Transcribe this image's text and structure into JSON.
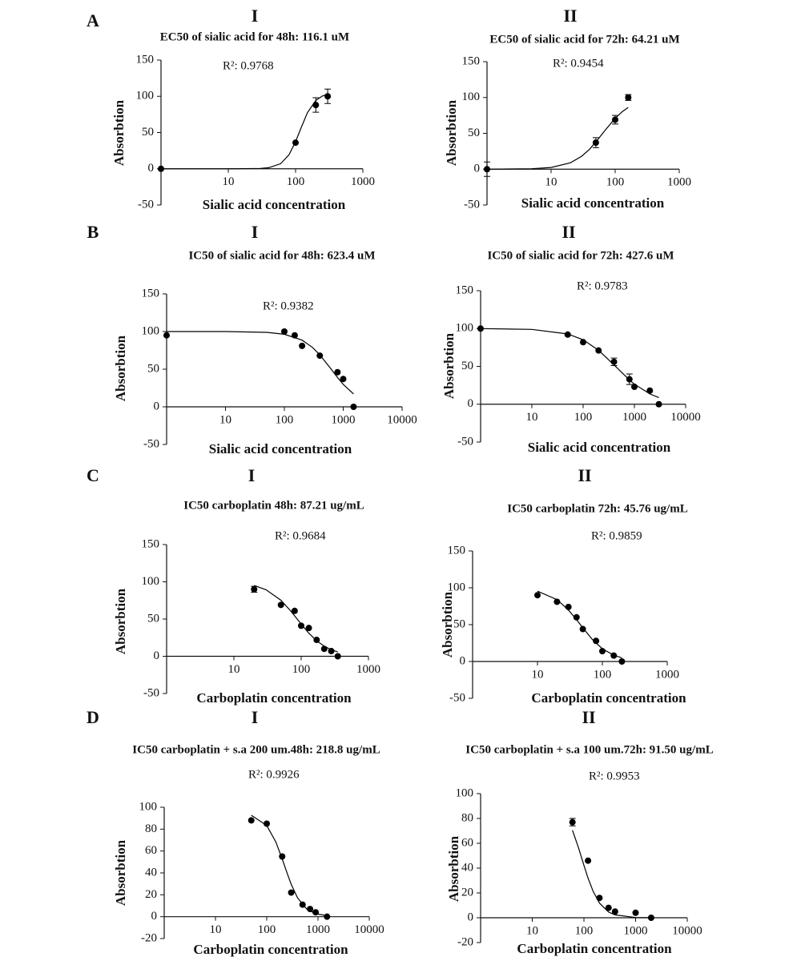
{
  "chart_data": [
    {
      "type": "scatter",
      "row_label": "A",
      "panel_label": "I",
      "title": "EC50 of sialic acid for 48h: 116.1 uM",
      "annotation": "R²: 0.9768",
      "x_label": "Sialic acid concentration",
      "y_label": "Absorbtion",
      "log_x": true,
      "color": "#000000",
      "xlim": [
        1,
        1000
      ],
      "xticks": [
        10,
        100,
        1000
      ],
      "ylim": [
        -50,
        150
      ],
      "yticks": [
        -50,
        0,
        50,
        100,
        150
      ],
      "x": [
        1,
        100,
        200,
        300
      ],
      "values": [
        0,
        36,
        88,
        100
      ],
      "errors": [
        null,
        null,
        10,
        10
      ],
      "fit_x": [
        1,
        10,
        30,
        40,
        60,
        80,
        100,
        120,
        150,
        200,
        250,
        300
      ],
      "fit_y": [
        0,
        0,
        0.5,
        1.5,
        7,
        19.4,
        37.4,
        56,
        77.4,
        94.3,
        100.4,
        102.7
      ]
    },
    {
      "type": "scatter",
      "panel_label": "II",
      "title": "EC50 of sialic acid for 72h: 64.21 uM",
      "annotation": "R²: 0.9454",
      "x_label": "Sialic acid concentration",
      "y_label": "Absorbtion",
      "log_x": true,
      "color": "#000000",
      "xlim": [
        1,
        1000
      ],
      "xticks": [
        10,
        100,
        1000
      ],
      "ylim": [
        -50,
        150
      ],
      "yticks": [
        -50,
        0,
        50,
        100,
        150
      ],
      "x": [
        1,
        50,
        100,
        160
      ],
      "values": [
        0,
        37,
        69,
        100
      ],
      "errors": [
        10,
        7,
        6,
        4
      ],
      "fit_x": [
        1,
        5,
        10,
        20,
        30,
        40,
        50,
        70,
        100,
        130,
        160
      ],
      "fit_y": [
        0,
        0.6,
        2.4,
        8.9,
        18,
        28,
        38,
        54.5,
        71,
        80.5,
        86.2
      ]
    },
    {
      "type": "scatter",
      "row_label": "B",
      "panel_label": "I",
      "title": "IC50 of sialic acid for 48h: 623.4 uM",
      "annotation": "R²: 0.9382",
      "x_label": "Sialic acid concentration",
      "y_label": "Absorbtion",
      "log_x": true,
      "color": "#000000",
      "xlim": [
        1,
        10000
      ],
      "xticks": [
        10,
        100,
        1000,
        10000
      ],
      "ylim": [
        -50,
        150
      ],
      "yticks": [
        -50,
        0,
        50,
        100,
        150
      ],
      "x": [
        1,
        100,
        150,
        200,
        400,
        800,
        1000,
        1500
      ],
      "values": [
        95,
        100,
        95,
        81,
        68,
        46,
        37,
        0
      ],
      "errors": [
        null,
        null,
        null,
        null,
        null,
        null,
        null,
        null
      ],
      "fit_x": [
        1,
        10,
        50,
        100,
        200,
        300,
        400,
        600,
        800,
        1000,
        1500
      ],
      "fit_y": [
        100,
        100,
        98.9,
        96.4,
        88.6,
        78.9,
        69,
        51.7,
        38.9,
        29.9,
        17.1
      ]
    },
    {
      "type": "scatter",
      "panel_label": "II",
      "title": "IC50 of sialic acid for 72h: 427.6 uM",
      "annotation": "R²: 0.9783",
      "x_label": "Sialic acid concentration",
      "y_label": "Absorbtion",
      "log_x": true,
      "color": "#000000",
      "xlim": [
        1,
        10000
      ],
      "xticks": [
        10,
        100,
        1000,
        10000
      ],
      "ylim": [
        -50,
        150
      ],
      "yticks": [
        -50,
        0,
        50,
        100,
        150
      ],
      "x": [
        1,
        50,
        100,
        200,
        400,
        800,
        1000,
        2000,
        3000
      ],
      "values": [
        100,
        92,
        82,
        71,
        56,
        33,
        23,
        18,
        0
      ],
      "errors": [
        null,
        null,
        null,
        null,
        5,
        7,
        null,
        null,
        null
      ],
      "fit_x": [
        1,
        10,
        50,
        100,
        200,
        400,
        800,
        1000,
        2000,
        3000
      ],
      "fit_y": [
        99.9,
        98.9,
        92.9,
        85.1,
        71.3,
        52,
        32.1,
        26.5,
        13.6,
        8.8
      ]
    },
    {
      "type": "scatter",
      "row_label": "C",
      "panel_label": "I",
      "title": "IC50 carboplatin 48h: 87.21 ug/mL",
      "annotation": "R²: 0.9684",
      "x_label": "Carboplatin concentration",
      "y_label": "Absorbtion",
      "log_x": true,
      "color": "#000000",
      "xlim": [
        1,
        1000
      ],
      "xticks": [
        10,
        100,
        1000
      ],
      "ylim": [
        -50,
        150
      ],
      "yticks": [
        -50,
        0,
        50,
        100,
        150
      ],
      "x": [
        20,
        50,
        80,
        100,
        130,
        170,
        220,
        280,
        350
      ],
      "values": [
        90,
        69,
        61,
        41,
        38,
        22,
        10,
        7,
        0
      ],
      "errors": [
        4,
        null,
        null,
        null,
        null,
        null,
        null,
        null,
        null
      ],
      "fit_x": [
        20,
        30,
        50,
        70,
        87,
        100,
        130,
        170,
        220,
        280,
        350
      ],
      "fit_y": [
        95,
        89.4,
        75.3,
        60.8,
        50.1,
        43.2,
        31,
        20.8,
        13.6,
        8.8,
        5.8
      ]
    },
    {
      "type": "scatter",
      "panel_label": "II",
      "title": "IC50 carboplatin 72h: 45.76 ug/mL",
      "annotation": "R²: 0.9859",
      "x_label": "Carboplatin concentration",
      "y_label": "Absorbtion",
      "log_x": true,
      "color": "#000000",
      "xlim": [
        1,
        1000
      ],
      "xticks": [
        10,
        100,
        1000
      ],
      "ylim": [
        -50,
        150
      ],
      "yticks": [
        -50,
        0,
        50,
        100,
        150
      ],
      "x": [
        10,
        20,
        30,
        40,
        50,
        80,
        100,
        150,
        200
      ],
      "values": [
        90,
        81,
        74,
        60,
        44,
        28,
        14,
        8,
        0
      ],
      "errors": [
        null,
        null,
        null,
        null,
        null,
        null,
        null,
        null,
        null
      ],
      "fit_x": [
        10,
        20,
        30,
        40,
        50,
        70,
        100,
        150,
        200
      ],
      "fit_y": [
        95.4,
        84,
        69.9,
        56.7,
        45.6,
        29.9,
        17.3,
        8.5,
        5
      ]
    },
    {
      "type": "scatter",
      "row_label": "D",
      "panel_label": "I",
      "title": "IC50 carboplatin + s.a 200 um.48h: 218.8 ug/mL",
      "annotation": "R²: 0.9926",
      "x_label": "Carboplatin concentration",
      "y_label": "Absorbtion",
      "log_x": true,
      "color": "#000000",
      "xlim": [
        1,
        10000
      ],
      "xticks": [
        10,
        100,
        1000,
        10000
      ],
      "ylim": [
        -20,
        100
      ],
      "yticks": [
        -20,
        0,
        20,
        40,
        60,
        80,
        100
      ],
      "x": [
        50,
        100,
        200,
        300,
        500,
        700,
        900,
        1500
      ],
      "values": [
        88,
        85,
        55,
        22,
        11,
        7,
        4,
        0
      ],
      "errors": [
        null,
        null,
        null,
        null,
        null,
        null,
        null,
        null
      ],
      "fit_x": [
        50,
        100,
        150,
        200,
        250,
        300,
        400,
        600,
        900,
        1600
      ],
      "fit_y": [
        92.7,
        83.3,
        68.4,
        52.8,
        39.7,
        29.7,
        17.2,
        7.1,
        2.7,
        0.7
      ]
    },
    {
      "type": "scatter",
      "panel_label": "II",
      "title": "IC50 carboplatin + s.a 100 um.72h: 91.50 ug/mL",
      "annotation": "R²: 0.9953",
      "x_label": "Carboplatin concentration",
      "y_label": "Absorbtion",
      "log_x": true,
      "color": "#000000",
      "xlim": [
        1,
        10000
      ],
      "xticks": [
        10,
        100,
        1000,
        10000
      ],
      "ylim": [
        -20,
        100
      ],
      "yticks": [
        -20,
        0,
        20,
        40,
        60,
        80,
        100
      ],
      "x": [
        60,
        120,
        200,
        300,
        400,
        1000,
        2000
      ],
      "values": [
        77,
        46,
        16,
        8,
        5,
        4,
        0
      ],
      "errors": [
        3,
        null,
        null,
        null,
        null,
        null,
        null
      ],
      "fit_x": [
        60,
        80,
        100,
        120,
        150,
        200,
        300,
        400,
        1000,
        2000
      ],
      "fit_y": [
        70.5,
        55.4,
        42.2,
        32,
        21.4,
        11.8,
        4.6,
        2.3,
        0.2,
        0
      ]
    }
  ]
}
